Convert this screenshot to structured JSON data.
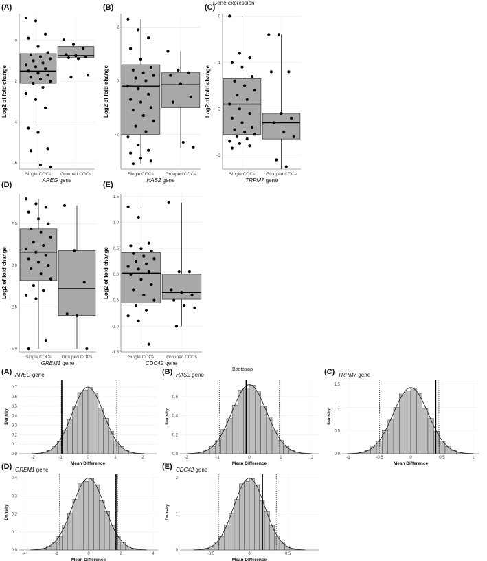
{
  "box_section_title": "Gene expression",
  "bootstrap_section_title": "Bootstrap",
  "chart_data": [
    {
      "type": "box",
      "panel": "(A)",
      "gene": "AREG",
      "gene_suffix": "gene",
      "ylabel": "Log2 of fold change",
      "categories": [
        "Single COCs",
        "Grouped COCs"
      ],
      "yticks": [
        0,
        -2,
        -4,
        -6
      ],
      "ylim": [
        -6.3,
        1.3
      ],
      "boxes": [
        {
          "name": "Single COCs",
          "min": -4.2,
          "q1": -2.1,
          "median": -1.5,
          "q3": -0.65,
          "max": 1.1
        },
        {
          "name": "Grouped COCs",
          "min": -0.95,
          "q1": -0.85,
          "median": -0.75,
          "q3": -0.3,
          "max": 0.05
        }
      ],
      "points": [
        [
          1.1,
          0.95,
          0.3,
          0.1,
          -0.3,
          -0.6,
          -0.7,
          -0.8,
          -0.9,
          -1.0,
          -1.1,
          -1.2,
          -1.3,
          -1.4,
          -1.5,
          -1.6,
          -1.7,
          -1.8,
          -1.9,
          -2.0,
          -2.1,
          -2.3,
          -2.6,
          -2.9,
          -3.3,
          -4.3,
          -4.5,
          -5.3,
          -5.4,
          -6.1,
          -6.2
        ],
        [
          0.05,
          -0.2,
          -0.4,
          -0.7,
          -0.75,
          -0.8,
          -0.85,
          -0.9,
          -1.7,
          -1.8
        ]
      ]
    },
    {
      "type": "box",
      "panel": "(B)",
      "gene": "HAS2",
      "gene_suffix": "gene",
      "ylabel": "Log2 of fold change",
      "categories": [
        "Single COCs",
        "Grouped COCs"
      ],
      "yticks": [
        2,
        0,
        -2
      ],
      "ylim": [
        -3.3,
        2.5
      ],
      "boxes": [
        {
          "name": "Single COCs",
          "min": -3.1,
          "q1": -2.0,
          "median": -0.2,
          "q3": 0.6,
          "max": 2.3
        },
        {
          "name": "Grouped COCs",
          "min": -2.5,
          "q1": -1.0,
          "median": -0.15,
          "q3": 0.3,
          "max": 1.1
        }
      ],
      "points": [
        [
          2.3,
          1.9,
          1.6,
          1.2,
          0.8,
          0.5,
          0.4,
          0.3,
          0.2,
          0.1,
          0.0,
          -0.2,
          -0.3,
          -0.5,
          -0.7,
          -0.8,
          -1.0,
          -1.1,
          -1.3,
          -1.5,
          -1.7,
          -1.9,
          -2.1,
          -2.4,
          -2.6,
          -2.7,
          -2.9,
          -3.0,
          -3.1
        ],
        [
          1.1,
          0.4,
          0.3,
          0.2,
          -0.1,
          -0.6,
          -0.8,
          -2.3,
          -2.5
        ]
      ]
    },
    {
      "type": "box",
      "panel": "(C)",
      "gene": "TRPM7",
      "gene_suffix": "gene",
      "ylabel": "Log2 of fold change",
      "categories": [
        "Single COCs",
        "Grouped COCs"
      ],
      "yticks": [
        0,
        -1,
        -2,
        -3
      ],
      "ylim": [
        -3.3,
        0.05
      ],
      "boxes": [
        {
          "name": "Single COCs",
          "min": -2.85,
          "q1": -2.55,
          "median": -1.9,
          "q3": -1.35,
          "max": 0.0
        },
        {
          "name": "Grouped COCs",
          "min": -3.3,
          "q1": -2.65,
          "median": -2.3,
          "q3": -2.1,
          "max": -0.4
        }
      ],
      "points": [
        [
          0.0,
          -0.8,
          -0.9,
          -1.0,
          -1.1,
          -1.3,
          -1.4,
          -1.5,
          -1.6,
          -1.7,
          -1.8,
          -1.9,
          -2.0,
          -2.1,
          -2.2,
          -2.3,
          -2.4,
          -2.45,
          -2.5,
          -2.55,
          -2.6,
          -2.65,
          -2.7,
          -2.75,
          -2.8,
          -2.85
        ],
        [
          -0.4,
          -0.4,
          -1.2,
          -1.2,
          -2.1,
          -2.2,
          -2.3,
          -2.5,
          -2.6,
          -3.1,
          -3.25
        ]
      ]
    },
    {
      "type": "box",
      "panel": "(D)",
      "gene": "GREM1",
      "gene_suffix": "gene",
      "ylabel": "Log2 of fold change",
      "categories": [
        "Single COCs",
        "Grouped COCs"
      ],
      "yticks": [
        2.5,
        0.0,
        -2.5,
        -5.0
      ],
      "ylim": [
        -5.2,
        4.3
      ],
      "boxes": [
        {
          "name": "Single COCs",
          "min": -5.0,
          "q1": -0.9,
          "median": 0.8,
          "q3": 2.2,
          "max": 4.0
        },
        {
          "name": "Grouped COCs",
          "min": -5.0,
          "q1": -3.0,
          "median": -1.4,
          "q3": 0.9,
          "max": 3.6
        }
      ],
      "points": [
        [
          4.0,
          3.7,
          3.5,
          3.2,
          2.8,
          2.5,
          2.2,
          2.0,
          1.7,
          1.4,
          1.2,
          1.0,
          0.8,
          0.6,
          0.4,
          0.2,
          0.0,
          -0.2,
          -0.5,
          -0.8,
          -1.2,
          -1.5,
          -1.8,
          -2.0,
          -4.5,
          -5.0
        ],
        [
          3.6,
          0.9,
          -1.0,
          -2.9,
          -3.0,
          -5.0
        ]
      ]
    },
    {
      "type": "box",
      "panel": "(E)",
      "gene": "CDC42",
      "gene_suffix": "gene",
      "ylabel": "Log2 of fold change",
      "categories": [
        "Single COCs",
        "Grouped COCs"
      ],
      "yticks": [
        1.5,
        1.0,
        0.5,
        0.0,
        -0.5,
        -1.0,
        -1.5
      ],
      "ylim": [
        -1.5,
        1.55
      ],
      "boxes": [
        {
          "name": "Single COCs",
          "min": -1.35,
          "q1": -0.55,
          "median": 0.02,
          "q3": 0.42,
          "max": 1.3
        },
        {
          "name": "Grouped COCs",
          "min": -1.0,
          "q1": -0.48,
          "median": -0.35,
          "q3": 0.0,
          "max": 1.38
        }
      ],
      "points": [
        [
          1.3,
          1.1,
          0.6,
          0.55,
          0.5,
          0.45,
          0.4,
          0.35,
          0.3,
          0.25,
          0.2,
          0.15,
          0.1,
          0.05,
          0.0,
          -0.1,
          -0.2,
          -0.3,
          -0.4,
          -0.5,
          -0.6,
          -0.7,
          -0.8,
          -0.9,
          -1.35
        ],
        [
          1.38,
          0.05,
          0.05,
          -0.3,
          -0.35,
          -0.4,
          -0.5,
          -0.6,
          -0.65,
          -1.0
        ]
      ]
    },
    {
      "type": "histogram",
      "panel": "(A)",
      "gene": "AREG",
      "gene_suffix": "gene",
      "ylabel": "Density",
      "xlabel": "Mean Difference",
      "xticks": [
        -2,
        -1,
        0,
        1,
        2
      ],
      "yticks": [
        0.0,
        0.1,
        0.2,
        0.3,
        0.4,
        0.5,
        0.6,
        0.7
      ],
      "xlim": [
        -2.5,
        2.5
      ],
      "ylim": [
        0,
        0.78
      ],
      "mean": 0.0,
      "sd": 0.57,
      "observed": -0.95,
      "ci": [
        -0.97,
        1.05
      ]
    },
    {
      "type": "histogram",
      "panel": "(B)",
      "gene": "HAS2",
      "gene_suffix": "gene",
      "ylabel": "Density",
      "xlabel": "Mean Difference",
      "xticks": [
        -2,
        -1,
        0,
        1,
        2
      ],
      "yticks": [
        0.0,
        0.2,
        0.4,
        0.6
      ],
      "xlim": [
        -2.2,
        2.2
      ],
      "ylim": [
        0,
        0.78
      ],
      "mean": 0.0,
      "sd": 0.55,
      "observed": -0.1,
      "ci": [
        -0.95,
        0.95
      ]
    },
    {
      "type": "histogram",
      "panel": "(C)",
      "gene": "TRPM7",
      "gene_suffix": "gene",
      "ylabel": "Density",
      "xlabel": "Mean Difference",
      "xticks": [
        -1.0,
        -0.5,
        0.0,
        0.5,
        1.0
      ],
      "yticks": [
        0.0,
        0.5,
        1.0,
        1.5
      ],
      "xlim": [
        -1.1,
        1.1
      ],
      "ylim": [
        0,
        1.6
      ],
      "mean": 0.0,
      "sd": 0.28,
      "observed": 0.4,
      "ci": [
        -0.5,
        0.45
      ]
    },
    {
      "type": "histogram",
      "panel": "(D)",
      "gene": "GREM1",
      "gene_suffix": "gene",
      "ylabel": "Density",
      "xlabel": "Mean Difference",
      "xticks": [
        -4,
        -2,
        0,
        2,
        4
      ],
      "yticks": [
        0.0,
        0.1,
        0.2,
        0.3,
        0.4
      ],
      "xlim": [
        -4.3,
        4.3
      ],
      "ylim": [
        0,
        0.42
      ],
      "mean": 0.0,
      "sd": 1.0,
      "observed": 1.7,
      "ci": [
        -1.8,
        1.8
      ]
    },
    {
      "type": "histogram",
      "panel": "(E)",
      "gene": "CDC42",
      "gene_suffix": "gene",
      "ylabel": "Density",
      "xlabel": "Mean Difference",
      "xticks": [
        -0.5,
        0.0,
        0.5
      ],
      "yticks": [
        0,
        1,
        2
      ],
      "xlim": [
        -0.9,
        0.9
      ],
      "ylim": [
        0,
        2.1
      ],
      "mean": 0.0,
      "sd": 0.2,
      "observed": 0.17,
      "ci": [
        -0.4,
        0.35
      ]
    }
  ]
}
